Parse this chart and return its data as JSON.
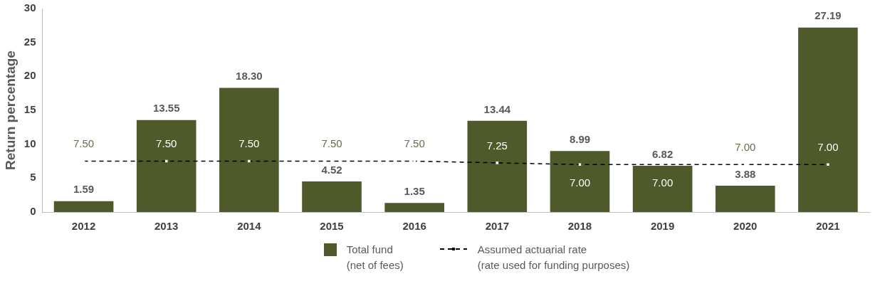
{
  "chart_data": {
    "type": "bar",
    "ylabel": "Return percentage",
    "categories": [
      "2012",
      "2013",
      "2014",
      "2015",
      "2016",
      "2017",
      "2018",
      "2019",
      "2020",
      "2021"
    ],
    "series": [
      {
        "name": "Total fund (net of fees)",
        "color": "#4f5a2b",
        "values": [
          1.59,
          13.55,
          18.3,
          4.52,
          1.35,
          13.44,
          8.99,
          6.82,
          3.88,
          27.19
        ],
        "value_labels": [
          "1.59",
          "13.55",
          "18.30",
          "4.52",
          "1.35",
          "13.44",
          "8.99",
          "6.82",
          "3.88",
          "27.19"
        ]
      },
      {
        "name": "Assumed actuarial rate (rate used for funding purposes)",
        "type": "line",
        "color": "#000000",
        "line_style": "dashed",
        "marker": "square",
        "values": [
          7.5,
          7.5,
          7.5,
          7.5,
          7.5,
          7.25,
          7.0,
          7.0,
          7.0,
          7.0
        ],
        "value_labels": [
          "7.50",
          "7.50",
          "7.50",
          "7.50",
          "7.50",
          "7.25",
          "7.00",
          "7.00",
          "7.00",
          "7.00"
        ]
      }
    ],
    "ylim": [
      0,
      30
    ],
    "yticks": [
      0,
      5,
      10,
      15,
      20,
      25,
      30
    ],
    "grid": false,
    "legend": "bottom"
  }
}
